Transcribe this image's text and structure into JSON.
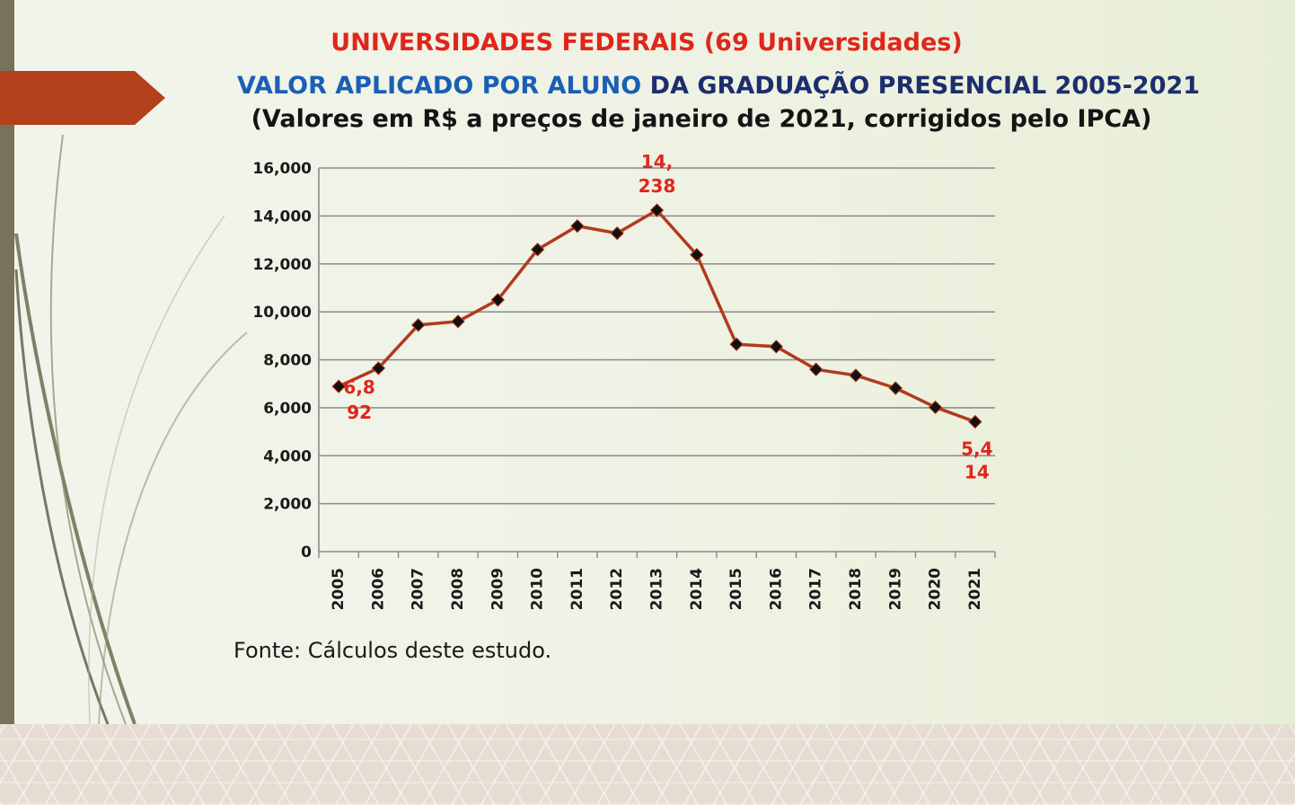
{
  "title": {
    "line1": "UNIVERSIDADES FEDERAIS (69 Universidades)",
    "line2_blue": "VALOR APLICADO POR ALUNO",
    "line2_navy": "DA GRADUAÇÃO PRESENCIAL 2005-2021",
    "line3": "(Valores em R$ a preços de janeiro de 2021, corrigidos pelo IPCA)"
  },
  "source": "Fonte: Cálculos deste estudo.",
  "colors": {
    "line": "#b23a1c",
    "marker": "#111111",
    "grid": "#8a8a8a",
    "label": "#e0261b",
    "accent_tab": "#b4401c"
  },
  "chart_data": {
    "type": "line",
    "categories": [
      "2005",
      "2006",
      "2007",
      "2008",
      "2009",
      "2010",
      "2011",
      "2012",
      "2013",
      "2014",
      "2015",
      "2016",
      "2017",
      "2018",
      "2019",
      "2020",
      "2021"
    ],
    "series": [
      {
        "values": [
          6892,
          7650,
          9450,
          9600,
          10500,
          12600,
          13580,
          13280,
          14238,
          12380,
          8650,
          8550,
          7600,
          7350,
          6820,
          6020,
          5414
        ]
      }
    ],
    "yticks": [
      0,
      2000,
      4000,
      6000,
      8000,
      10000,
      12000,
      14000,
      16000
    ],
    "ytick_labels": [
      "0",
      "2,000",
      "4,000",
      "6,000",
      "8,000",
      "10,000",
      "12,000",
      "14,000",
      "16,000"
    ],
    "ylim": [
      0,
      16000
    ],
    "grid": true,
    "annotations": [
      {
        "index": 0,
        "lines": [
          "6,8",
          "92"
        ]
      },
      {
        "index": 8,
        "lines": [
          "14,",
          "238"
        ]
      },
      {
        "index": 16,
        "lines": [
          "5,4",
          "14"
        ]
      }
    ]
  }
}
